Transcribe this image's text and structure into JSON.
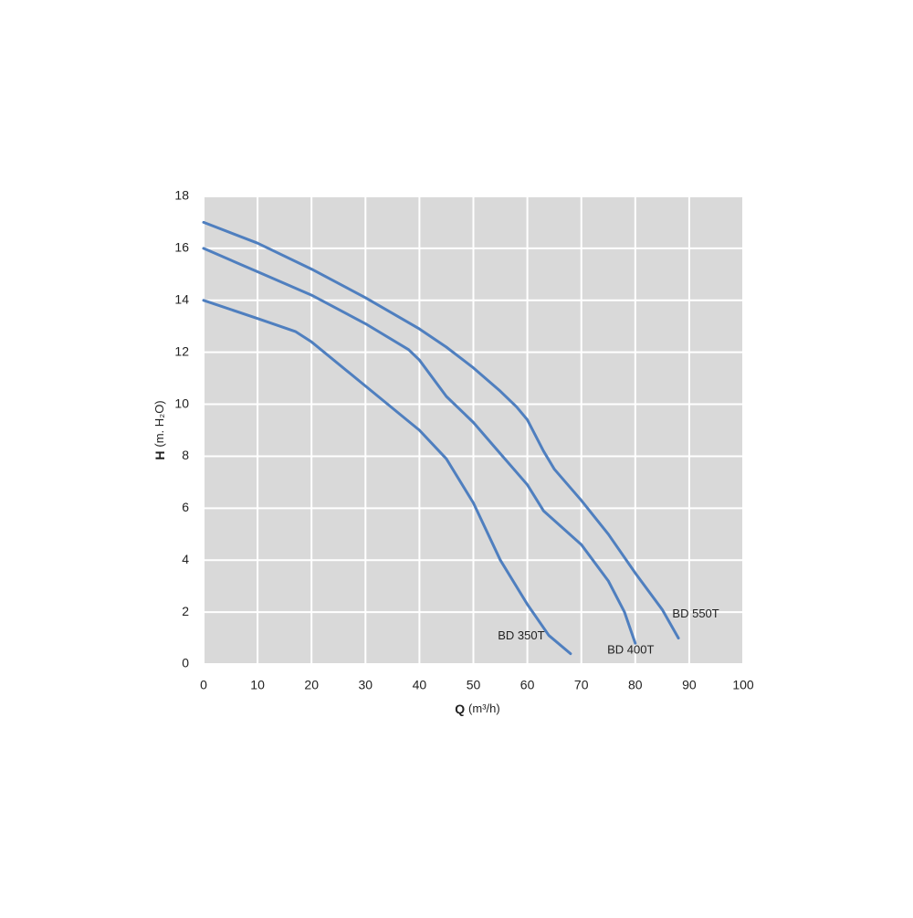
{
  "chart_data": {
    "type": "line",
    "xlabel": {
      "symbol": "Q",
      "unit": "(m³/h)"
    },
    "ylabel": {
      "symbol": "H",
      "unit": "(m. H₂O)"
    },
    "xlim": [
      0,
      100
    ],
    "xticks": [
      0,
      10,
      20,
      30,
      40,
      50,
      60,
      70,
      80,
      90,
      100
    ],
    "ylim": [
      0,
      18
    ],
    "yticks": [
      0,
      2,
      4,
      6,
      8,
      10,
      12,
      14,
      16,
      18
    ],
    "grid": true,
    "background": "#d9d9d9",
    "series": [
      {
        "name": "BD 350T",
        "color": "#4f7fbf",
        "x": [
          0,
          10,
          17,
          20,
          30,
          40,
          45,
          50,
          55,
          60,
          64,
          68
        ],
        "values": [
          14,
          13.3,
          12.8,
          12.4,
          10.7,
          9.0,
          7.9,
          6.2,
          4.0,
          2.3,
          1.1,
          0.4
        ]
      },
      {
        "name": "BD 400T",
        "color": "#4f7fbf",
        "x": [
          0,
          10,
          20,
          30,
          38,
          40,
          45,
          50,
          55,
          60,
          63,
          70,
          75,
          78,
          80
        ],
        "values": [
          16,
          15.1,
          14.2,
          13.1,
          12.1,
          11.7,
          10.3,
          9.3,
          8.1,
          6.9,
          5.9,
          4.6,
          3.2,
          2.0,
          0.8
        ]
      },
      {
        "name": "BD 550T",
        "color": "#4f7fbf",
        "x": [
          0,
          10,
          20,
          30,
          40,
          45,
          50,
          55,
          58,
          60,
          63,
          65,
          70,
          75,
          80,
          85,
          88
        ],
        "values": [
          17,
          16.2,
          15.2,
          14.1,
          12.9,
          12.2,
          11.4,
          10.5,
          9.9,
          9.4,
          8.2,
          7.5,
          6.3,
          5.0,
          3.5,
          2.1,
          1.0
        ]
      }
    ]
  }
}
